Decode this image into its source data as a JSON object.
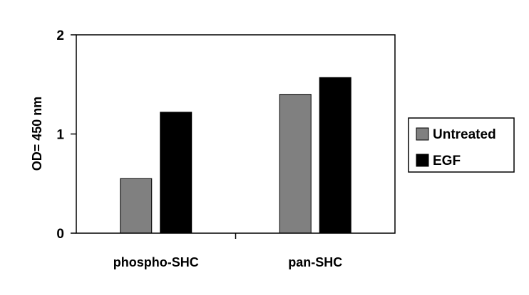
{
  "chart_data": {
    "type": "bar",
    "title": "",
    "xlabel": "",
    "ylabel": "OD= 450 nm",
    "ylim": [
      0,
      2
    ],
    "yticks": [
      0,
      1,
      2
    ],
    "categories": [
      "phospho-SHC",
      "pan-SHC"
    ],
    "series": [
      {
        "name": "Untreated",
        "color": "#808080",
        "values": [
          0.55,
          1.4
        ]
      },
      {
        "name": "EGF",
        "color": "#000000",
        "values": [
          1.22,
          1.57
        ]
      }
    ],
    "grid": false,
    "legend_position": "right"
  }
}
